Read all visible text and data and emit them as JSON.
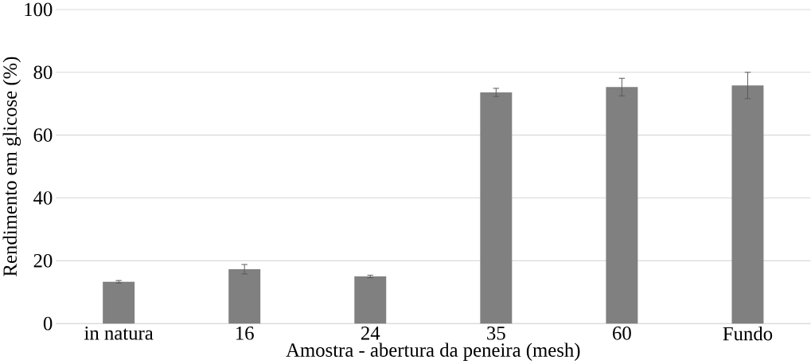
{
  "chart_data": {
    "type": "bar",
    "xlabel": "Amostra - abertura da peneira (mesh)",
    "ylabel": "Rendimento em glicose (%)",
    "categories": [
      "in natura",
      "16",
      "24",
      "35",
      "60",
      "Fundo"
    ],
    "values": [
      13.3,
      17.3,
      15.0,
      73.6,
      75.3,
      75.8
    ],
    "errors": [
      0.4,
      1.5,
      0.4,
      1.3,
      2.8,
      4.2
    ],
    "color": "#808080",
    "ylim": [
      0,
      100
    ],
    "yticks": [
      0,
      20,
      40,
      60,
      80,
      100
    ],
    "grid": "y"
  }
}
